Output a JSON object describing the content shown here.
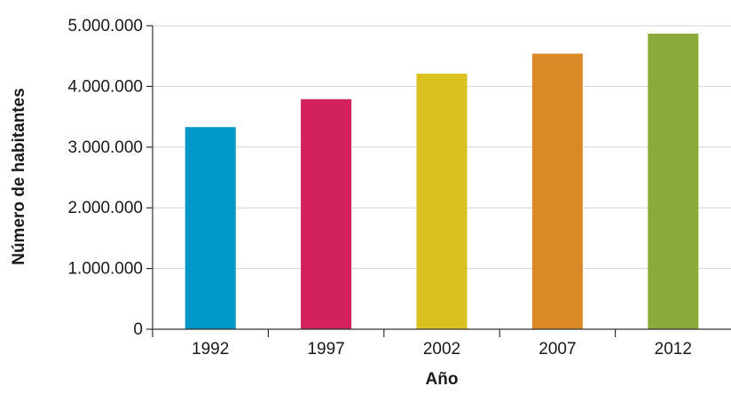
{
  "chart_data": {
    "type": "bar",
    "title": "",
    "xlabel": "Año",
    "ylabel": "Número de habitantes",
    "categories": [
      "1992",
      "1997",
      "2002",
      "2007",
      "2012"
    ],
    "values": [
      3330000,
      3790000,
      4210000,
      4540000,
      4870000
    ],
    "colors": [
      "#0098c7",
      "#d2215d",
      "#dbc11f",
      "#d98a27",
      "#8aab3c"
    ],
    "ylim": [
      0,
      5000000
    ],
    "yticks": [
      0,
      1000000,
      2000000,
      3000000,
      4000000,
      5000000
    ],
    "ytick_labels": [
      "0",
      "1.000.000",
      "2.000.000",
      "3.000.000",
      "4.000.000",
      "5.000.000"
    ],
    "grid": true
  }
}
